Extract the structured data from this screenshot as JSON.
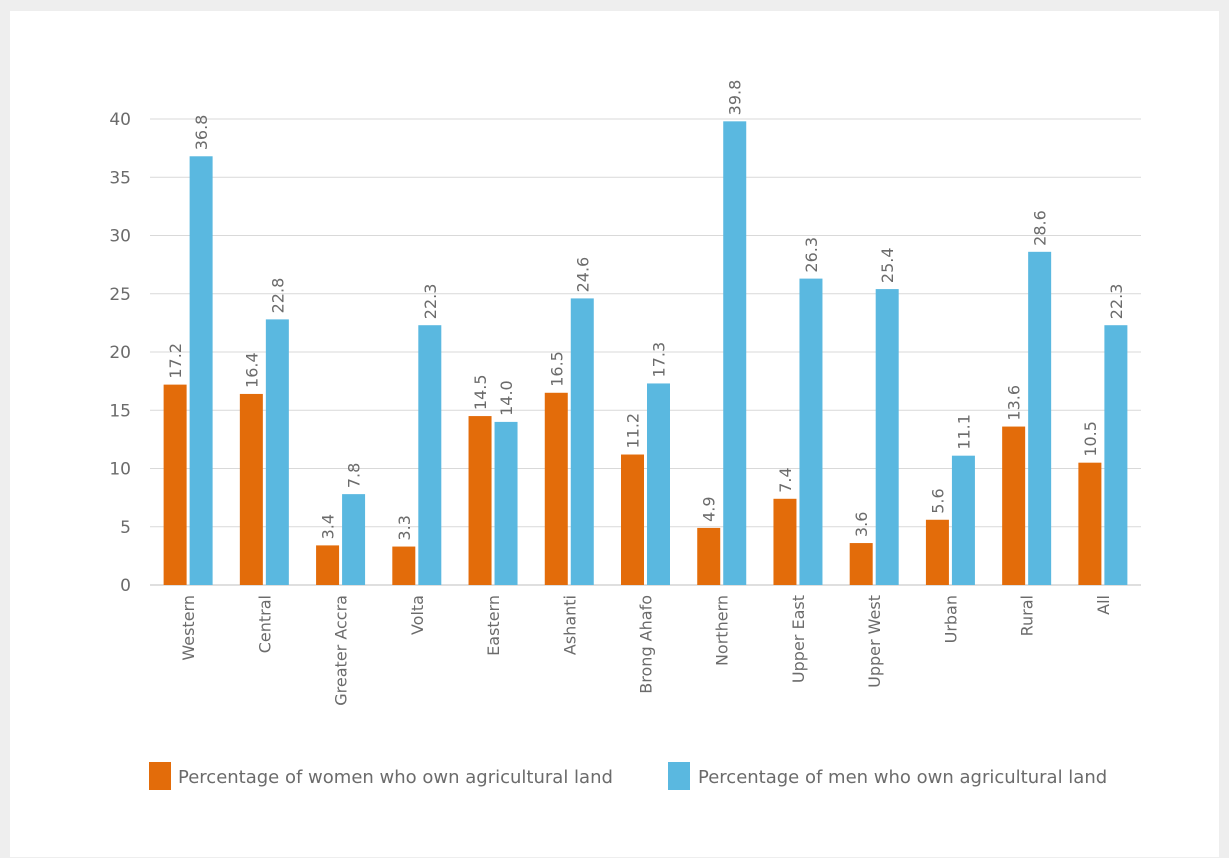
{
  "chart_data": {
    "type": "bar",
    "categories": [
      "Western",
      "Central",
      "Greater Accra",
      "Volta",
      "Eastern",
      "Ashanti",
      "Brong Ahafo",
      "Northern",
      "Upper East",
      "Upper West",
      "Urban",
      "Rural",
      "All"
    ],
    "series": [
      {
        "name": "Percentage of women who own agricultural land",
        "color": "#e36c0a",
        "values": [
          17.2,
          16.4,
          3.4,
          3.3,
          14.5,
          16.5,
          11.2,
          4.9,
          7.4,
          3.6,
          5.6,
          13.6,
          10.5
        ],
        "labels": [
          "17.2",
          "16.4",
          "3.4",
          "3.3",
          "14.5",
          "16.5",
          "11.2",
          "4.9",
          "7.4",
          "3.6",
          "5.6",
          "13.6",
          "10.5"
        ]
      },
      {
        "name": "Percentage of men who own agricultural land",
        "color": "#5ab8e0",
        "values": [
          36.8,
          22.8,
          7.8,
          22.3,
          14.0,
          24.6,
          17.3,
          39.8,
          26.3,
          25.4,
          11.1,
          28.6,
          22.3
        ],
        "labels": [
          "36.8",
          "22.8",
          "7.8",
          "22.3",
          "14.0",
          "24.6",
          "17.3",
          "39.8",
          "26.3",
          "25.4",
          "11.1",
          "28.6",
          "22.3"
        ]
      }
    ],
    "ylim": [
      0,
      40
    ],
    "yticks": [
      0,
      5,
      10,
      15,
      20,
      25,
      30,
      35,
      40
    ],
    "grid": true,
    "legend_position": "bottom",
    "gridline_color": "#d9d9d9"
  }
}
